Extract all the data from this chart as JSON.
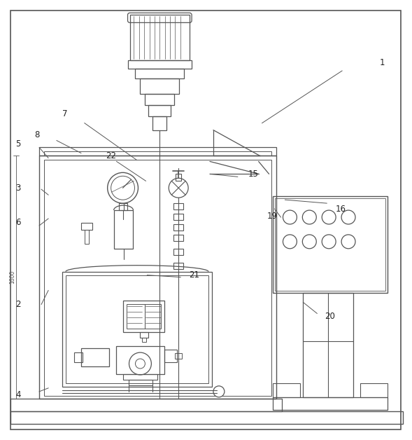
{
  "bg_color": "#ffffff",
  "lc": "#555555",
  "lw": 0.8,
  "dim_label": "1600",
  "label_data": [
    [
      "1",
      548,
      88,
      490,
      100,
      375,
      175
    ],
    [
      "2",
      25,
      435,
      58,
      435,
      68,
      415
    ],
    [
      "3",
      25,
      268,
      58,
      270,
      68,
      278
    ],
    [
      "4",
      25,
      565,
      55,
      560,
      68,
      555
    ],
    [
      "5",
      25,
      205,
      55,
      210,
      68,
      225
    ],
    [
      "6",
      25,
      318,
      55,
      322,
      68,
      312
    ],
    [
      "7",
      92,
      162,
      120,
      175,
      195,
      228
    ],
    [
      "8",
      52,
      192,
      80,
      200,
      115,
      218
    ],
    [
      "15",
      362,
      248,
      340,
      252,
      300,
      248
    ],
    [
      "16",
      488,
      298,
      468,
      290,
      408,
      285
    ],
    [
      "19",
      390,
      308,
      402,
      310,
      393,
      298
    ],
    [
      "20",
      472,
      452,
      454,
      448,
      434,
      432
    ],
    [
      "21",
      278,
      393,
      258,
      396,
      210,
      393
    ],
    [
      "22",
      158,
      222,
      166,
      230,
      208,
      258
    ]
  ]
}
